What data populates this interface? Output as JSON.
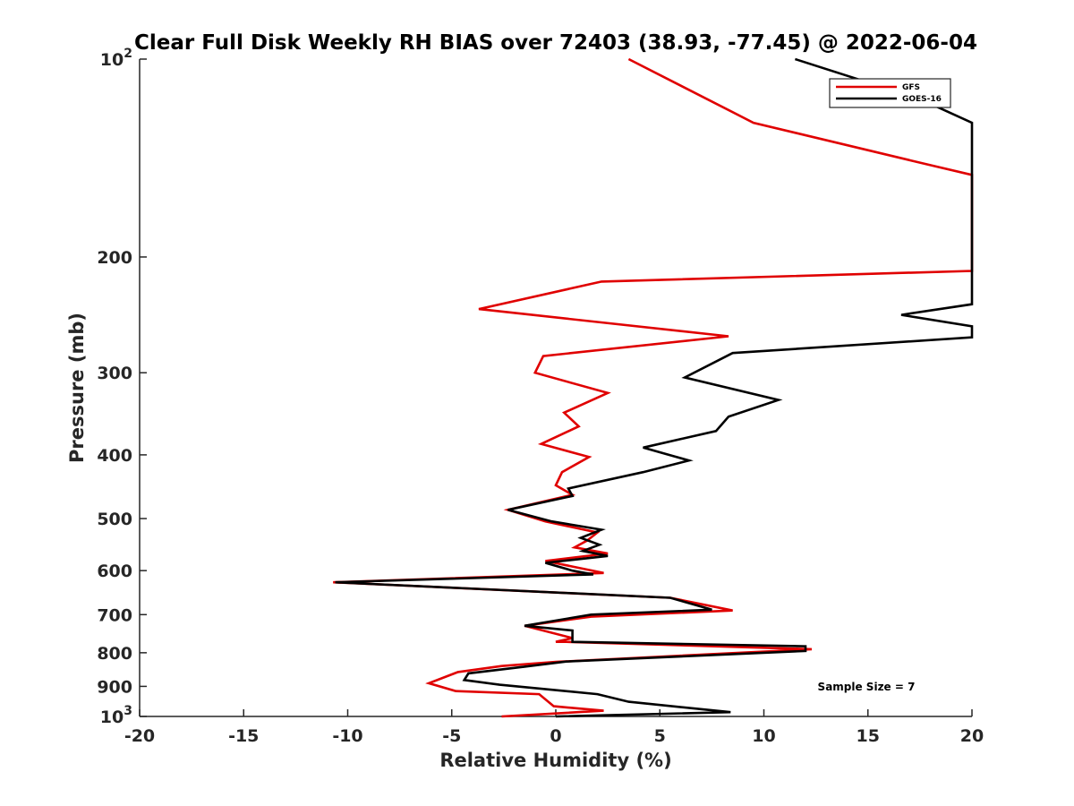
{
  "chart_data": {
    "type": "line",
    "title": "Clear Full Disk Weekly RH BIAS over 72403 (38.93, -77.45) @ 2022-06-04",
    "xlabel": "Relative Humidity (%)",
    "ylabel": "Pressure (mb)",
    "xlim": [
      -20,
      20
    ],
    "ylim": [
      1000,
      100
    ],
    "yscale": "log",
    "x_ticks": [
      -20,
      -15,
      -10,
      -5,
      0,
      5,
      10,
      15,
      20
    ],
    "x_tick_labels": [
      "-20",
      "-15",
      "-10",
      "-5",
      "0",
      "5",
      "10",
      "15",
      "20"
    ],
    "y_ticks": [
      {
        "value": 100,
        "label": "10",
        "sup": "2"
      },
      {
        "value": 200,
        "label": "200"
      },
      {
        "value": 300,
        "label": "300"
      },
      {
        "value": 400,
        "label": "400"
      },
      {
        "value": 500,
        "label": "500"
      },
      {
        "value": 600,
        "label": "600"
      },
      {
        "value": 700,
        "label": "700"
      },
      {
        "value": 800,
        "label": "800"
      },
      {
        "value": 900,
        "label": "900"
      },
      {
        "value": 1000,
        "label": "10",
        "sup": "3"
      }
    ],
    "grid": false,
    "legend_position": "top-right",
    "annotation": "Sample Size = 7",
    "series": [
      {
        "name": "GFS",
        "color": "#e00000",
        "points": [
          [
            3.5,
            100
          ],
          [
            9.5,
            125
          ],
          [
            18,
            145
          ],
          [
            20,
            150
          ],
          [
            20,
            210
          ],
          [
            2.2,
            218
          ],
          [
            -3.7,
            240
          ],
          [
            8.3,
            264
          ],
          [
            -0.6,
            283
          ],
          [
            -1.0,
            300
          ],
          [
            2.5,
            322
          ],
          [
            0.4,
            345
          ],
          [
            1.1,
            362
          ],
          [
            -0.7,
            385
          ],
          [
            1.6,
            403
          ],
          [
            0.3,
            425
          ],
          [
            0,
            445
          ],
          [
            0.8,
            460
          ],
          [
            -2.3,
            485
          ],
          [
            -0.5,
            505
          ],
          [
            2.0,
            525
          ],
          [
            1.5,
            540
          ],
          [
            0.9,
            553
          ],
          [
            2.5,
            565
          ],
          [
            -0.5,
            580
          ],
          [
            2.3,
            605
          ],
          [
            -10.7,
            625
          ],
          [
            5.5,
            660
          ],
          [
            8.5,
            690
          ],
          [
            1.7,
            705
          ],
          [
            -1.5,
            728
          ],
          [
            0.8,
            760
          ],
          [
            0,
            770
          ],
          [
            0.5,
            770
          ],
          [
            12.3,
            790
          ],
          [
            0,
            826
          ],
          [
            -2.6,
            838
          ],
          [
            -4.7,
            856
          ],
          [
            -6.1,
            890
          ],
          [
            -4.8,
            915
          ],
          [
            -0.8,
            925
          ],
          [
            -0.1,
            965
          ],
          [
            2.3,
            980
          ],
          [
            -2.6,
            1000
          ]
        ]
      },
      {
        "name": "GOES-16",
        "color": "#000000",
        "points": [
          [
            11.5,
            100
          ],
          [
            17.5,
            115
          ],
          [
            20,
            125
          ],
          [
            20,
            236
          ],
          [
            16.6,
            245
          ],
          [
            20,
            255
          ],
          [
            20,
            265
          ],
          [
            8.5,
            280
          ],
          [
            6.2,
            305
          ],
          [
            10.7,
            330
          ],
          [
            8.3,
            350
          ],
          [
            7.7,
            368
          ],
          [
            4.2,
            390
          ],
          [
            6.4,
            408
          ],
          [
            4.2,
            425
          ],
          [
            0.6,
            450
          ],
          [
            0.8,
            462
          ],
          [
            -2.3,
            485
          ],
          [
            -0.2,
            505
          ],
          [
            2.2,
            520
          ],
          [
            1.2,
            535
          ],
          [
            2.1,
            548
          ],
          [
            1.3,
            560
          ],
          [
            2.5,
            570
          ],
          [
            -0.5,
            584
          ],
          [
            0.8,
            600
          ],
          [
            1.8,
            608
          ],
          [
            -10.6,
            625
          ],
          [
            5.5,
            660
          ],
          [
            7.5,
            688
          ],
          [
            1.7,
            700
          ],
          [
            -1.5,
            728
          ],
          [
            0.8,
            740
          ],
          [
            0.8,
            770
          ],
          [
            12.0,
            782
          ],
          [
            12.0,
            795
          ],
          [
            0.5,
            825
          ],
          [
            -1.5,
            840
          ],
          [
            -4.2,
            860
          ],
          [
            -4.4,
            880
          ],
          [
            -2.7,
            895
          ],
          [
            2.0,
            925
          ],
          [
            3.5,
            950
          ],
          [
            8.4,
            985
          ],
          [
            0,
            1000
          ]
        ]
      }
    ]
  }
}
